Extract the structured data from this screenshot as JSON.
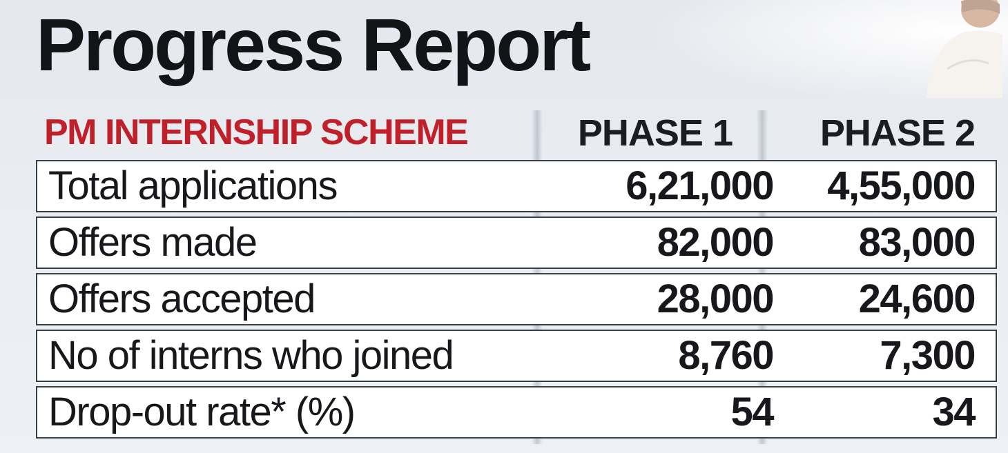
{
  "title": "Progress Report",
  "chart_data": {
    "type": "table",
    "title": "Progress Report",
    "subtitle": "PM INTERNSHIP SCHEME",
    "columns": [
      "PHASE 1",
      "PHASE 2"
    ],
    "rows": [
      {
        "label": "Total applications",
        "values": [
          "6,21,000",
          "4,55,000"
        ]
      },
      {
        "label": "Offers made",
        "values": [
          "82,000",
          "83,000"
        ]
      },
      {
        "label": "Offers accepted",
        "values": [
          "28,000",
          "24,600"
        ]
      },
      {
        "label": "No of interns who joined",
        "values": [
          "8,760",
          "7,300"
        ]
      },
      {
        "label": "Drop-out rate* (%)",
        "values": [
          "54",
          "34"
        ]
      }
    ]
  },
  "colors": {
    "subtitle": "#c0202a",
    "text": "#16181c",
    "border": "#3a3e45",
    "background": "#e9edf2"
  }
}
